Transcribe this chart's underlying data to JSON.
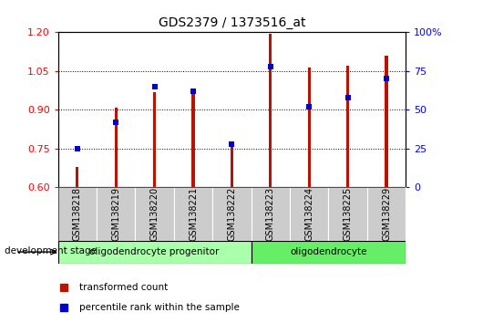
{
  "title": "GDS2379 / 1373516_at",
  "categories": [
    "GSM138218",
    "GSM138219",
    "GSM138220",
    "GSM138221",
    "GSM138222",
    "GSM138223",
    "GSM138224",
    "GSM138225",
    "GSM138229"
  ],
  "red_values": [
    0.68,
    0.91,
    0.97,
    0.965,
    0.77,
    1.195,
    1.065,
    1.07,
    1.11
  ],
  "blue_values_pct": [
    25,
    42,
    65,
    62,
    28,
    78,
    52,
    58,
    70
  ],
  "ylim_left": [
    0.6,
    1.2
  ],
  "ylim_right": [
    0,
    100
  ],
  "yticks_left": [
    0.6,
    0.75,
    0.9,
    1.05,
    1.2
  ],
  "yticks_right": [
    0,
    25,
    50,
    75,
    100
  ],
  "group1_label": "oligodendrocyte progenitor",
  "group2_label": "oligodendrocyte",
  "group1_indices": [
    0,
    1,
    2,
    3,
    4
  ],
  "group2_indices": [
    5,
    6,
    7,
    8
  ],
  "stage_label": "development stage",
  "legend_red": "transformed count",
  "legend_blue": "percentile rank within the sample",
  "bar_color": "#bb1100",
  "dot_color": "#0000cc",
  "group1_color": "#aaffaa",
  "group2_color": "#66ee66",
  "tick_bg_color": "#cccccc",
  "base_value": 0.6
}
